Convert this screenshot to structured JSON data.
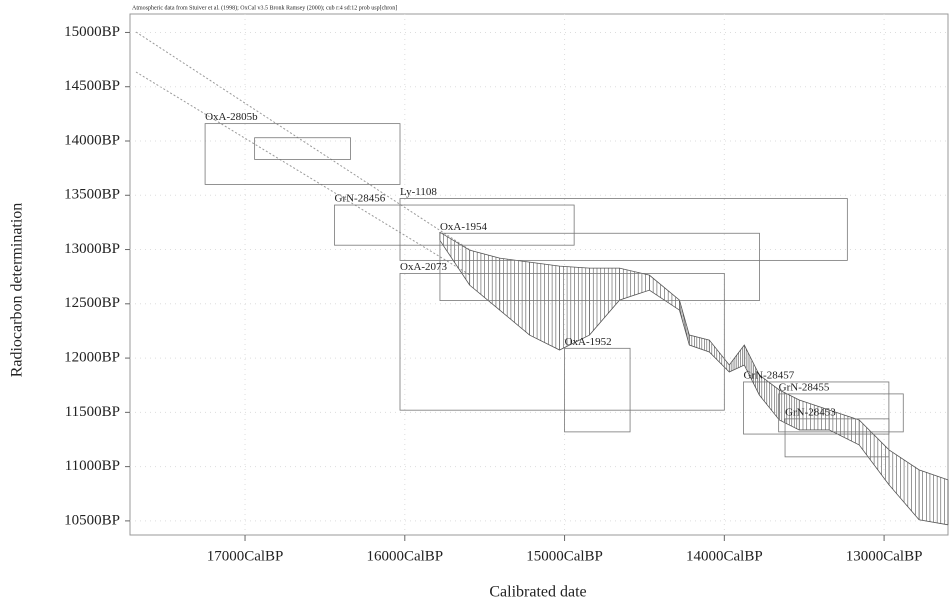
{
  "chart_data": {
    "type": "calibration",
    "title": "Atmospheric data from Stuiver et al. (1998); OxCal v3.5 Bronk Ramsey (2000); cub r:4 sd:12 prob usp[chron]",
    "x_label": "Calibrated date",
    "y_label": "Radiocarbon determination",
    "xlim": [
      17720,
      12600
    ],
    "ylim": [
      10370,
      15170
    ],
    "xticks": [
      {
        "value": 17000,
        "label": "17000CalBP"
      },
      {
        "value": 16000,
        "label": "16000CalBP"
      },
      {
        "value": 15000,
        "label": "15000CalBP"
      },
      {
        "value": 14000,
        "label": "14000CalBP"
      },
      {
        "value": 13000,
        "label": "13000CalBP"
      }
    ],
    "yticks": [
      {
        "value": 15000,
        "label": "15000BP"
      },
      {
        "value": 14500,
        "label": "14500BP"
      },
      {
        "value": 14000,
        "label": "14000BP"
      },
      {
        "value": 13500,
        "label": "13500BP"
      },
      {
        "value": 13000,
        "label": "13000BP"
      },
      {
        "value": 12500,
        "label": "12500BP"
      },
      {
        "value": 12000,
        "label": "12000BP"
      },
      {
        "value": 11500,
        "label": "11500BP"
      },
      {
        "value": 11000,
        "label": "11000BP"
      },
      {
        "value": 10500,
        "label": "10500BP"
      }
    ],
    "grid": true,
    "curve": {
      "color": "#555555",
      "x": [
        15781,
        15594,
        15406,
        15219,
        15031,
        14844,
        14656,
        14469,
        14281,
        14219,
        14094,
        13969,
        13875,
        13781,
        13656,
        13531,
        13344,
        13156,
        12969,
        12781,
        12600
      ],
      "upper": [
        13160,
        12994,
        12921,
        12884,
        12847,
        12829,
        12829,
        12764,
        12534,
        12212,
        12166,
        11936,
        12120,
        11844,
        11706,
        11614,
        11522,
        11430,
        11154,
        10970,
        10878
      ],
      "lower": [
        13086,
        12672,
        12442,
        12212,
        12074,
        12212,
        12534,
        12626,
        12442,
        12120,
        12056,
        11872,
        11936,
        11660,
        11430,
        11338,
        11338,
        11200,
        10832,
        10510,
        10464
      ]
    },
    "samples": [
      {
        "name": "OxA-2805b",
        "cal": [
          17250,
          16030
        ],
        "bp": [
          14160,
          13600
        ]
      },
      {
        "cal": [
          16940,
          16340
        ],
        "bp": [
          14030,
          13830
        ]
      },
      {
        "name": "GrN-28456",
        "cal": [
          16440,
          14940
        ],
        "bp": [
          13410,
          13040
        ]
      },
      {
        "name": "Ly-1108",
        "cal": [
          16030,
          13230
        ],
        "bp": [
          13470,
          12900
        ]
      },
      {
        "name": "OxA-1954",
        "cal": [
          15780,
          13780
        ],
        "bp": [
          13150,
          12530
        ]
      },
      {
        "name": "OxA-2073",
        "cal": [
          16030,
          14000
        ],
        "bp": [
          12780,
          11520
        ]
      },
      {
        "name": "OxA-1952",
        "cal": [
          15000,
          14590
        ],
        "bp": [
          12090,
          11320
        ]
      },
      {
        "name": "GrN-28457",
        "cal": [
          13880,
          12970
        ],
        "bp": [
          11780,
          11300
        ]
      },
      {
        "name": "GrN-28455",
        "cal": [
          13660,
          12880
        ],
        "bp": [
          11670,
          11320
        ]
      },
      {
        "name": "GrN-28453",
        "cal": [
          13620,
          12970
        ],
        "bp": [
          11440,
          11090
        ]
      }
    ]
  }
}
